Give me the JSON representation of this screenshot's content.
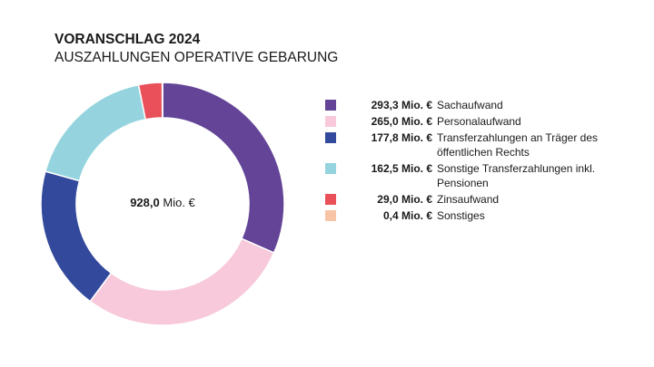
{
  "chart_data": {
    "type": "pie",
    "title": "VORANSCHLAG 2024",
    "subtitle": "AUSZAHLUNGEN OPERATIVE GEBARUNG",
    "center_label": {
      "value": "928,0",
      "unit": "Mio. €"
    },
    "legend_position": "right",
    "slices": [
      {
        "label": "Sachaufwand",
        "value": 293.3,
        "value_label": "293,3 Mio. €",
        "color": "#634497"
      },
      {
        "label": "Personalaufwand",
        "value": 265.0,
        "value_label": "265,0 Mio. €",
        "color": "#f7c9da"
      },
      {
        "label": "Transferzahlungen an Träger des öffentlichen Rechts",
        "value": 177.8,
        "value_label": "177,8 Mio. €",
        "color": "#33499c"
      },
      {
        "label": "Sonstige Transferzahlungen inkl. Pensionen",
        "value": 162.5,
        "value_label": "162,5 Mio. €",
        "color": "#95d4de"
      },
      {
        "label": "Zinsaufwand",
        "value": 29.0,
        "value_label": "29,0 Mio. €",
        "color": "#e9505a"
      },
      {
        "label": "Sonstiges",
        "value": 0.4,
        "value_label": "0,4 Mio. €",
        "color": "#f8c4a6"
      }
    ]
  }
}
